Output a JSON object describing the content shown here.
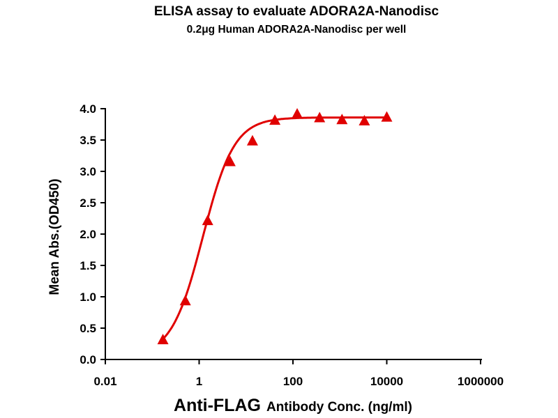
{
  "chart_data": {
    "type": "scatter",
    "title": "ELISA assay to evaluate ADORA2A-Nanodisc",
    "subtitle": "0.2μg Human ADORA2A-Nanodisc per well",
    "xlabel_main": "Anti-FLAG",
    "xlabel_rest": "Antibody Conc. (ng/ml)",
    "ylabel": "Mean Abs.(OD450)",
    "xscale": "log",
    "xlim": [
      0.01,
      1000000
    ],
    "ylim": [
      0,
      4.0
    ],
    "xticks": [
      0.01,
      1,
      100,
      10000,
      1000000
    ],
    "xtick_labels": [
      "0.01",
      "1",
      "100",
      "10000",
      "1000000"
    ],
    "yticks": [
      0,
      0.5,
      1.0,
      1.5,
      2.0,
      2.5,
      3.0,
      3.5,
      4.0
    ],
    "ytick_labels": [
      "0.0",
      "0.5",
      "1.0",
      "1.5",
      "2.0",
      "2.5",
      "3.0",
      "3.5",
      "4.0"
    ],
    "grid": false,
    "color": "#e00000",
    "marker": "triangle",
    "series": [
      {
        "x": [
          0.169,
          0.508,
          1.52,
          4.57,
          13.7,
          41.2,
          123,
          370,
          1111,
          3333,
          10000
        ],
        "y": [
          0.31,
          0.93,
          2.21,
          3.15,
          3.48,
          3.81,
          3.91,
          3.85,
          3.82,
          3.8,
          3.86
        ]
      }
    ],
    "fit": {
      "model": "4PL",
      "bottom": 0.05,
      "top": 3.86,
      "ec50": 1.2,
      "hill": 1.3
    }
  }
}
